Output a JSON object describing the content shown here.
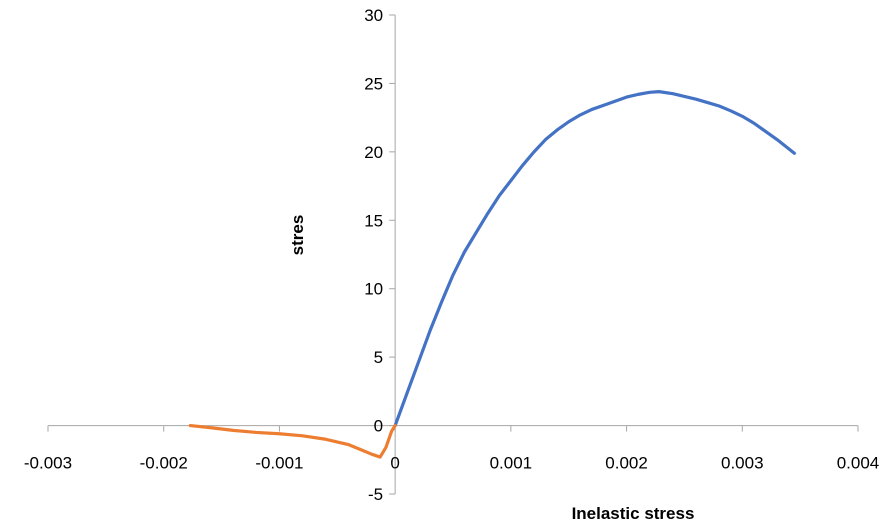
{
  "chart_data": {
    "type": "line",
    "title": "",
    "xlabel": "Inelastic stress",
    "ylabel": "stres",
    "xlim": [
      -0.003,
      0.004
    ],
    "ylim": [
      -5,
      30
    ],
    "x_ticks": [
      -0.003,
      -0.002,
      -0.001,
      0,
      0.001,
      0.002,
      0.003,
      0.004
    ],
    "x_tick_labels": [
      "-0.003",
      "-0.002",
      "-0.001",
      "0",
      "0.001",
      "0.002",
      "0.003",
      "0.004"
    ],
    "y_ticks": [
      -5,
      0,
      5,
      10,
      15,
      20,
      25,
      30
    ],
    "y_tick_labels": [
      "-5",
      "0",
      "5",
      "10",
      "15",
      "20",
      "25",
      "30"
    ],
    "grid": false,
    "legend": "none",
    "series": [
      {
        "color": "#4472C4",
        "x": [
          0,
          0.0001,
          0.0002,
          0.0003,
          0.0004,
          0.0005,
          0.0006,
          0.0007,
          0.0008,
          0.0009,
          0.001,
          0.0011,
          0.0012,
          0.0013,
          0.0014,
          0.0015,
          0.0016,
          0.0017,
          0.0018,
          0.0019,
          0.002,
          0.0021,
          0.0022,
          0.00228,
          0.0024,
          0.0025,
          0.0026,
          0.0027,
          0.0028,
          0.0029,
          0.003,
          0.0031,
          0.0032,
          0.0033,
          0.00345
        ],
        "y": [
          0,
          2.3,
          4.6,
          6.9,
          9.0,
          11.0,
          12.7,
          14.1,
          15.5,
          16.8,
          17.9,
          19.0,
          20.0,
          20.9,
          21.6,
          22.2,
          22.7,
          23.1,
          23.4,
          23.7,
          24.0,
          24.2,
          24.35,
          24.4,
          24.25,
          24.05,
          23.85,
          23.6,
          23.35,
          23.0,
          22.6,
          22.1,
          21.5,
          20.9,
          19.9
        ]
      },
      {
        "color": "#ED7D31",
        "x": [
          -0.00177,
          -0.0016,
          -0.0014,
          -0.0012,
          -0.001,
          -0.0008,
          -0.0006,
          -0.0004,
          -0.0003,
          -0.0002,
          -0.00013,
          -8e-05,
          -3e-05,
          0
        ],
        "y": [
          0,
          -0.15,
          -0.35,
          -0.5,
          -0.6,
          -0.75,
          -1.0,
          -1.4,
          -1.75,
          -2.1,
          -2.3,
          -1.6,
          -0.4,
          0
        ]
      }
    ]
  }
}
